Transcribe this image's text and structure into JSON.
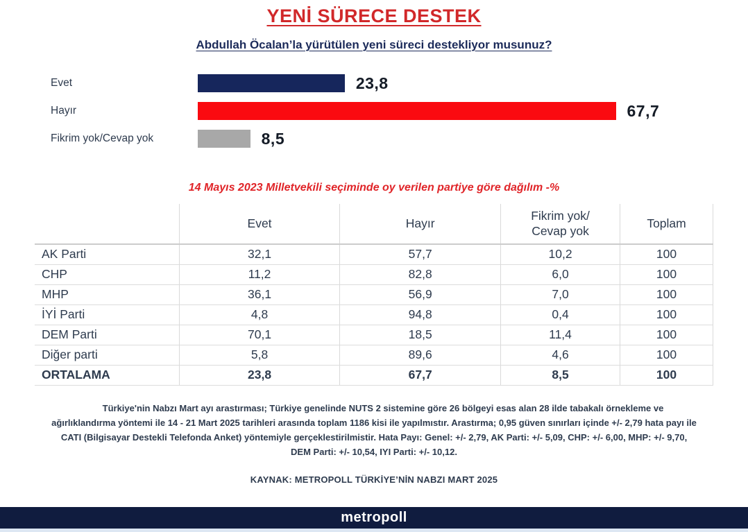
{
  "title": "YENİ SÜRECE DESTEK",
  "subtitle": "Abdullah Öcalan’la yürütülen yeni süreci destekliyor musunuz?",
  "chart_data": {
    "type": "bar",
    "orientation": "horizontal",
    "title": "YENİ SÜRECE DESTEK",
    "question": "Abdullah Öcalan’la yürütülen yeni süreci destekliyor musunuz?",
    "categories": [
      "Evet",
      "Hayır",
      "Fikrim yok/Cevap yok"
    ],
    "values": [
      23.8,
      67.7,
      8.5
    ],
    "value_labels": [
      "23,8",
      "67,7",
      "8,5"
    ],
    "bar_colors": [
      "#16265c",
      "#fa0a10",
      "#a8a8a8"
    ],
    "xlim": [
      0,
      100
    ],
    "grid": false,
    "legend": "none",
    "party_table": {
      "section_title": "14 Mayıs 2023 Milletvekili seçiminde oy verilen partiye göre dağılım -%",
      "columns": [
        "",
        "Evet",
        "Hayır",
        "Fikrim yok/\nCevap yok",
        "Toplam"
      ],
      "rows": [
        {
          "cells": [
            "AK Parti",
            "32,1",
            "57,7",
            "10,2",
            "100"
          ],
          "bold": false
        },
        {
          "cells": [
            "CHP",
            "11,2",
            "82,8",
            "6,0",
            "100"
          ],
          "bold": false
        },
        {
          "cells": [
            "MHP",
            "36,1",
            "56,9",
            "7,0",
            "100"
          ],
          "bold": false
        },
        {
          "cells": [
            "İYİ Parti",
            "4,8",
            "94,8",
            "0,4",
            "100"
          ],
          "bold": false
        },
        {
          "cells": [
            "DEM Parti",
            "70,1",
            "18,5",
            "11,4",
            "100"
          ],
          "bold": false
        },
        {
          "cells": [
            "Diğer parti",
            "5,8",
            "89,6",
            "4,6",
            "100"
          ],
          "bold": false
        },
        {
          "cells": [
            "ORTALAMA",
            "23,8",
            "67,7",
            "8,5",
            "100"
          ],
          "bold": true
        }
      ]
    }
  },
  "footnote": "Türkiye'nin Nabzı Mart ayı arastırması; Türkiye genelinde NUTS 2 sistemine göre 26 bölgeyi esas alan 28 ilde tabakalı örnekleme ve ağırlıklandırma yöntemi ile 14 - 21 Mart 2025 tarihleri arasında toplam 1186 kisi ile yapılmıstır. Arastırma; 0,95 güven sınırları içinde +/- 2,79 hata payı ile CATI (Bilgisayar Destekli Telefonda Anket) yöntemiyle gerçeklestirilmistir. Hata Payı: Genel: +/- 2,79, AK Parti: +/- 5,09, CHP: +/- 6,00, MHP: +/- 9,70, DEM Parti: +/- 10,54, IYI Parti: +/- 10,12.",
  "source": "KAYNAK: METROPOLL TÜRKİYE’NİN NABZI MART 2025",
  "footer": {
    "brand": "metropoll"
  },
  "colors": {
    "title_red": "#d1282a",
    "section_red": "#e02428",
    "subtitle_navy": "#1c2b5a",
    "bar_evet": "#16265c",
    "bar_hayir": "#fa0a10",
    "bar_fikrim": "#a8a8a8",
    "footer_navy": "#101c3f",
    "text": "#2e3b4e"
  }
}
